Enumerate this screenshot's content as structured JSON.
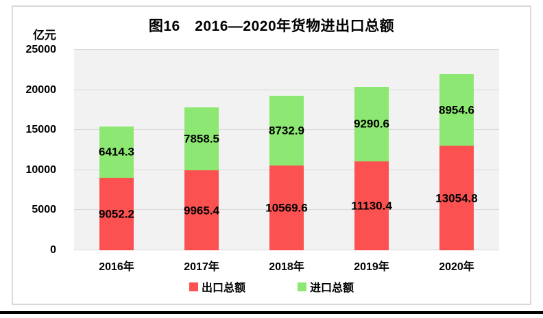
{
  "chart_data": {
    "type": "bar",
    "stacked": true,
    "title": "图16　2016—2020年货物进出口总额",
    "ylabel": "亿元",
    "categories": [
      "2016年",
      "2017年",
      "2018年",
      "2019年",
      "2020年"
    ],
    "series": [
      {
        "name": "出口总额",
        "color": "#fc5151",
        "values": [
          9052.2,
          9965.4,
          10569.6,
          11130.4,
          13054.8
        ]
      },
      {
        "name": "进口总额",
        "color": "#8de873",
        "values": [
          6414.3,
          7858.5,
          8732.9,
          9290.6,
          8954.6
        ]
      }
    ],
    "ylim": [
      0,
      25000
    ],
    "yticks": [
      0,
      5000,
      10000,
      15000,
      20000,
      25000
    ],
    "grid": true,
    "legend_position": "bottom",
    "value_label_decimals": 1
  }
}
